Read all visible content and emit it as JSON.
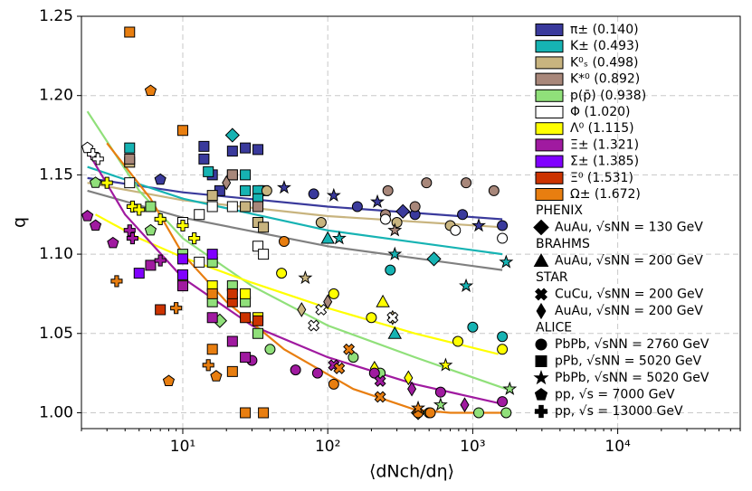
{
  "chart_data": {
    "type": "scatter",
    "x_label": "⟨dNch/dη⟩",
    "y_label": "q",
    "xlog": true,
    "xlim": [
      2,
      70000
    ],
    "ylim": [
      0.99,
      1.25
    ],
    "xticks": [
      {
        "value": 10,
        "label": "10¹"
      },
      {
        "value": 100,
        "label": "10²"
      },
      {
        "value": 1000,
        "label": "10³"
      },
      {
        "value": 10000,
        "label": "10⁴"
      }
    ],
    "yticks": [
      {
        "value": 1.0,
        "label": "1.00"
      },
      1.05,
      {
        "value": 1.1,
        "label": "1.10"
      },
      1.15,
      {
        "value": 1.2,
        "label": "1.20"
      },
      1.25
    ],
    "grid": true,
    "series": [
      {
        "name": "π± (0.140)",
        "color": "#3a3a9c",
        "x": [
          14,
          14,
          16,
          22,
          27,
          33,
          36,
          18,
          330,
          80,
          160,
          400,
          850,
          1600,
          50,
          110,
          220,
          1100,
          7
        ],
        "values": [
          1.168,
          1.16,
          1.15,
          1.165,
          1.167,
          1.166,
          1.14,
          1.14,
          1.127,
          1.138,
          1.13,
          1.125,
          1.125,
          1.118,
          1.142,
          1.137,
          1.133,
          1.118,
          1.147
        ],
        "markers": [
          "square",
          "square",
          "square",
          "square",
          "square",
          "square",
          "square",
          "square",
          "diamond",
          "circle",
          "circle",
          "circle",
          "circle",
          "circle",
          "star",
          "star",
          "star",
          "star",
          "pentagon"
        ]
      },
      {
        "name": "K± (0.493)",
        "color": "#16b3b3",
        "x": [
          4.3,
          15,
          22,
          27,
          27,
          33,
          33,
          22,
          540,
          270,
          1000,
          1600,
          120,
          290,
          900,
          1700,
          100,
          290
        ],
        "values": [
          1.167,
          1.152,
          1.15,
          1.15,
          1.14,
          1.14,
          1.135,
          1.175,
          1.097,
          1.09,
          1.054,
          1.048,
          1.11,
          1.1,
          1.08,
          1.095,
          1.11,
          1.05
        ],
        "markers": [
          "square",
          "square",
          "square",
          "square",
          "square",
          "square",
          "square",
          "diamond",
          "diamond",
          "circle",
          "circle",
          "circle",
          "star",
          "star",
          "star",
          "star",
          "triangle",
          "triangle"
        ]
      },
      {
        "name": "K⁰ₛ (0.498)",
        "color": "#c8b47f",
        "x": [
          4.3,
          16,
          27,
          33,
          36,
          38,
          90,
          300,
          700,
          66,
          280,
          70
        ],
        "values": [
          1.158,
          1.137,
          1.13,
          1.12,
          1.117,
          1.14,
          1.12,
          1.12,
          1.118,
          1.065,
          1.06,
          1.085
        ],
        "markers": [
          "square",
          "square",
          "square",
          "square",
          "square",
          "circle",
          "circle",
          "circle",
          "circle",
          "thin-diamond",
          "thin-diamond",
          "star"
        ]
      },
      {
        "name": "K*⁰ (0.892)",
        "color": "#a8877a",
        "x": [
          260,
          480,
          900,
          1400,
          250,
          400,
          4.3,
          22,
          33,
          20,
          100,
          290
        ],
        "values": [
          1.14,
          1.145,
          1.145,
          1.14,
          1.125,
          1.13,
          1.16,
          1.15,
          1.13,
          1.145,
          1.07,
          1.115
        ],
        "markers": [
          "circle",
          "circle",
          "circle",
          "circle",
          "circle",
          "circle",
          "square",
          "square",
          "square",
          "thin-diamond",
          "thin-diamond",
          "star"
        ]
      },
      {
        "name": "p(p̄) (0.938)",
        "color": "#90e07a",
        "x": [
          150,
          230,
          500,
          1700,
          1100,
          40,
          6,
          10,
          16,
          27,
          33,
          16,
          22,
          18,
          420,
          600,
          1800,
          2.5,
          6
        ],
        "values": [
          1.035,
          1.025,
          1.0,
          1.0,
          1.0,
          1.04,
          1.13,
          1.1,
          1.07,
          1.07,
          1.05,
          1.095,
          1.08,
          1.058,
          1.0,
          1.005,
          1.015,
          1.145,
          1.115
        ],
        "markers": [
          "circle",
          "circle",
          "circle",
          "circle",
          "circle",
          "circle",
          "square",
          "square",
          "square",
          "square",
          "square",
          "square",
          "square",
          "diamond",
          "diamond",
          "star",
          "star",
          "pentagon",
          "pentagon"
        ]
      },
      {
        "name": "Φ (1.020)",
        "color": "#ffffff",
        "x": [
          4.3,
          10,
          13,
          16,
          22,
          33,
          36,
          13,
          250,
          760,
          1600,
          80,
          90,
          280,
          2.2,
          2.4,
          2.6
        ],
        "values": [
          1.145,
          1.12,
          1.125,
          1.13,
          1.13,
          1.105,
          1.1,
          1.095,
          1.122,
          1.115,
          1.11,
          1.055,
          1.065,
          1.06,
          1.167,
          1.163,
          1.16
        ],
        "markers": [
          "square",
          "square",
          "square",
          "square",
          "square",
          "square",
          "square",
          "square",
          "circle",
          "circle",
          "circle",
          "x",
          "x",
          "x",
          "pentagon",
          "plus",
          "plus"
        ]
      },
      {
        "name": "Λ⁰ (1.115)",
        "color": "#ffff00",
        "x": [
          48,
          110,
          200,
          790,
          1600,
          10,
          16,
          27,
          33,
          210,
          360,
          3,
          4.5,
          5,
          7,
          10,
          12,
          240,
          650
        ],
        "values": [
          1.088,
          1.075,
          1.06,
          1.045,
          1.04,
          1.085,
          1.08,
          1.075,
          1.06,
          1.028,
          1.022,
          1.145,
          1.13,
          1.128,
          1.122,
          1.118,
          1.11,
          1.07,
          1.03
        ],
        "markers": [
          "circle",
          "circle",
          "circle",
          "circle",
          "circle",
          "square",
          "square",
          "square",
          "square",
          "thin-diamond",
          "thin-diamond",
          "plus",
          "plus",
          "plus",
          "plus",
          "plus",
          "plus",
          "triangle",
          "star"
        ]
      },
      {
        "name": "Ξ± (1.321)",
        "color": "#a01aa0",
        "x": [
          30,
          60,
          85,
          210,
          600,
          1600,
          6,
          10,
          16,
          22,
          27,
          2.2,
          2.5,
          3.3,
          4.3,
          4.5,
          7,
          110,
          230,
          380,
          880
        ],
        "values": [
          1.033,
          1.027,
          1.025,
          1.025,
          1.013,
          1.007,
          1.093,
          1.08,
          1.06,
          1.045,
          1.035,
          1.124,
          1.118,
          1.107,
          1.115,
          1.11,
          1.096,
          1.03,
          1.02,
          1.015,
          1.005
        ],
        "markers": [
          "circle",
          "circle",
          "circle",
          "circle",
          "circle",
          "circle",
          "square",
          "square",
          "square",
          "square",
          "square",
          "pentagon",
          "pentagon",
          "pentagon",
          "plus",
          "plus",
          "plus",
          "x",
          "x",
          "thin-diamond",
          "thin-diamond"
        ]
      },
      {
        "name": "Σ± (1.385)",
        "color": "#8000ff",
        "x": [
          5,
          10,
          10,
          16
        ],
        "values": [
          1.088,
          1.087,
          1.097,
          1.1
        ],
        "markers": [
          "square",
          "square",
          "square",
          "square"
        ]
      },
      {
        "name": "Ξ⁰ (1.531)",
        "color": "#cc3300",
        "x": [
          7,
          22,
          22,
          27,
          33
        ],
        "values": [
          1.065,
          1.07,
          1.075,
          1.06,
          1.058
        ],
        "markers": [
          "square",
          "square",
          "square",
          "square",
          "square"
        ]
      },
      {
        "name": "Ω± (1.672)",
        "color": "#e87e10",
        "x": [
          4.3,
          10,
          16,
          22,
          27,
          36,
          16,
          50,
          420,
          510,
          110,
          6,
          17,
          8,
          3.5,
          9,
          15,
          140,
          230,
          120,
          420
        ],
        "values": [
          1.24,
          1.178,
          1.04,
          1.026,
          1.0,
          1.0,
          1.075,
          1.108,
          1.0,
          1.0,
          1.018,
          1.203,
          1.023,
          1.02,
          1.083,
          1.066,
          1.03,
          1.04,
          1.01,
          1.028,
          1.003
        ],
        "markers": [
          "square",
          "square",
          "square",
          "square",
          "square",
          "square",
          "square",
          "circle",
          "circle",
          "circle",
          "circle",
          "pentagon",
          "pentagon",
          "pentagon",
          "plus",
          "plus",
          "plus",
          "x",
          "x",
          "x",
          "star"
        ]
      }
    ],
    "fits": [
      {
        "color": "#3a3a9c",
        "x": [
          2.2,
          10,
          100,
          1600
        ],
        "values": [
          1.148,
          1.139,
          1.13,
          1.122
        ]
      },
      {
        "color": "#c8b47f",
        "x": [
          2.2,
          10,
          100,
          1600
        ],
        "values": [
          1.145,
          1.134,
          1.124,
          1.117
        ]
      },
      {
        "color": "#808080",
        "x": [
          2.2,
          10,
          100,
          1600
        ],
        "values": [
          1.14,
          1.123,
          1.105,
          1.09
        ]
      },
      {
        "color": "#16b3b3",
        "x": [
          2.2,
          10,
          100,
          1600
        ],
        "values": [
          1.155,
          1.135,
          1.115,
          1.1
        ]
      },
      {
        "color": "#90e07a",
        "x": [
          2.2,
          5,
          10,
          30,
          100,
          400,
          1700
        ],
        "values": [
          1.19,
          1.14,
          1.11,
          1.08,
          1.055,
          1.035,
          1.015
        ]
      },
      {
        "color": "#ffff00",
        "x": [
          2.5,
          5,
          10,
          30,
          100,
          400,
          1500
        ],
        "values": [
          1.125,
          1.11,
          1.098,
          1.082,
          1.066,
          1.05,
          1.037
        ]
      },
      {
        "color": "#a01aa0",
        "x": [
          2.2,
          4,
          10,
          30,
          100,
          400,
          1700
        ],
        "values": [
          1.165,
          1.125,
          1.085,
          1.055,
          1.035,
          1.018,
          1.005
        ]
      },
      {
        "color": "#e87e10",
        "x": [
          3,
          6,
          10,
          20,
          50,
          150,
          400,
          700,
          1600
        ],
        "values": [
          1.17,
          1.135,
          1.1,
          1.07,
          1.04,
          1.015,
          1.002,
          1.0,
          1.0
        ]
      }
    ],
    "experiment_groups": [
      {
        "name": "PHENIX",
        "entries": [
          {
            "label": "AuAu, √sNN = 130 GeV",
            "marker": "diamond"
          }
        ]
      },
      {
        "name": "BRAHMS",
        "entries": [
          {
            "label": "AuAu, √sNN = 200 GeV",
            "marker": "triangle"
          }
        ]
      },
      {
        "name": "STAR",
        "entries": [
          {
            "label": "CuCu, √sNN = 200 GeV",
            "marker": "x"
          },
          {
            "label": "AuAu, √sNN = 200 GeV",
            "marker": "thin-diamond"
          }
        ]
      },
      {
        "name": "ALICE",
        "entries": [
          {
            "label": "PbPb, √sNN = 2760 GeV",
            "marker": "circle"
          },
          {
            "label": "pPb, √sNN = 5020 GeV",
            "marker": "square"
          },
          {
            "label": "PbPb, √sNN = 5020 GeV",
            "marker": "star"
          },
          {
            "label": "pp, √s = 7000 GeV",
            "marker": "pentagon"
          },
          {
            "label": "pp, √s = 13000 GeV",
            "marker": "plus"
          }
        ]
      }
    ]
  }
}
